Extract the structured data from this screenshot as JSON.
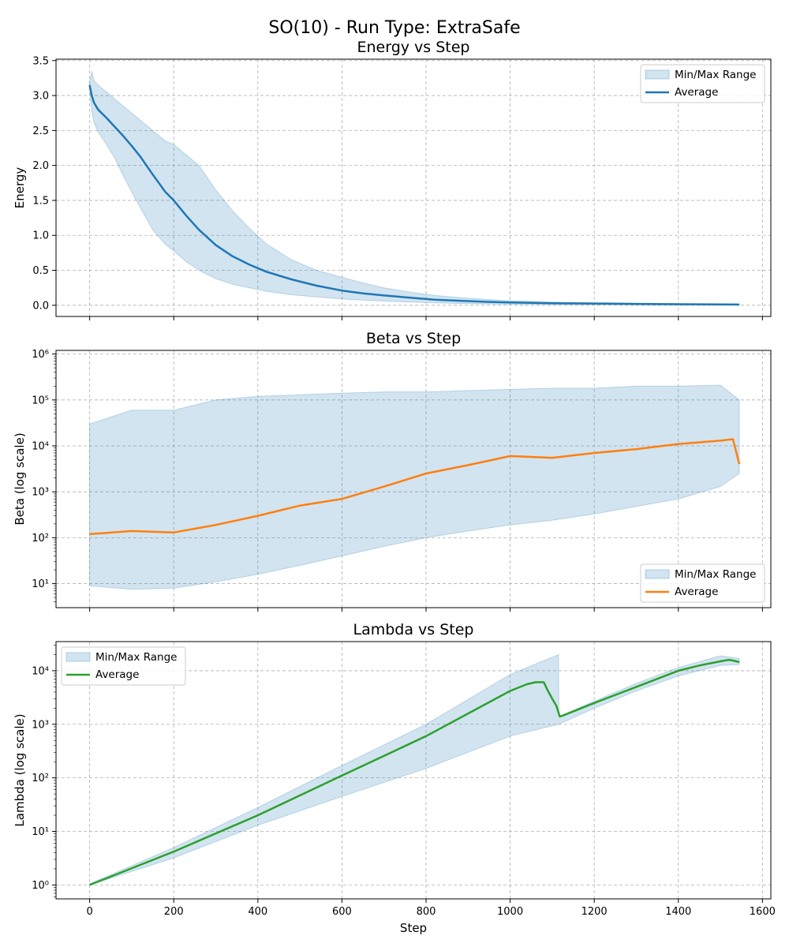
{
  "figure": {
    "title": "SO(10) - Run Type: ExtraSafe"
  },
  "colors": {
    "energy": "#1f77b4",
    "beta": "#ff7f0e",
    "lambda": "#2ca02c",
    "band": "#1f77b4"
  },
  "chart_data": [
    {
      "type": "line",
      "id": "energy",
      "title": "Energy vs Step",
      "xlabel": "",
      "ylabel": "Energy",
      "yscale": "linear",
      "xlim": [
        -80,
        1620
      ],
      "ylim": [
        -0.16,
        3.52
      ],
      "xticks": [
        0,
        200,
        400,
        600,
        800,
        1000,
        1200,
        1400,
        1600
      ],
      "yticks": [
        0.0,
        0.5,
        1.0,
        1.5,
        2.0,
        2.5,
        3.0,
        3.5
      ],
      "ytick_labels": [
        "0.0",
        "0.5",
        "1.0",
        "1.5",
        "2.0",
        "2.5",
        "3.0",
        "3.5"
      ],
      "legend": {
        "location": "upper right",
        "entries": [
          "Min/Max Range",
          "Average"
        ]
      },
      "grid": true,
      "series": [
        {
          "name": "Average",
          "x": [
            0,
            5,
            10,
            20,
            40,
            60,
            80,
            100,
            120,
            150,
            180,
            200,
            230,
            260,
            300,
            340,
            380,
            420,
            480,
            540,
            600,
            650,
            700,
            760,
            820,
            880,
            940,
            1000,
            1100,
            1200,
            1300,
            1400,
            1500,
            1545
          ],
          "y": [
            3.15,
            3.0,
            2.9,
            2.8,
            2.68,
            2.55,
            2.42,
            2.28,
            2.13,
            1.87,
            1.62,
            1.5,
            1.28,
            1.08,
            0.86,
            0.7,
            0.58,
            0.48,
            0.37,
            0.28,
            0.21,
            0.17,
            0.14,
            0.11,
            0.08,
            0.065,
            0.05,
            0.04,
            0.03,
            0.025,
            0.02,
            0.015,
            0.012,
            0.01
          ]
        },
        {
          "name": "Min/Max Range",
          "x": [
            0,
            5,
            10,
            20,
            40,
            60,
            80,
            100,
            120,
            150,
            180,
            200,
            230,
            260,
            300,
            340,
            380,
            420,
            480,
            540,
            600,
            650,
            700,
            760,
            820,
            880,
            940,
            1000,
            1100,
            1200,
            1300,
            1400,
            1500,
            1545
          ],
          "lower": [
            3.1,
            2.78,
            2.62,
            2.48,
            2.3,
            2.1,
            1.85,
            1.62,
            1.4,
            1.08,
            0.87,
            0.78,
            0.62,
            0.5,
            0.38,
            0.3,
            0.25,
            0.2,
            0.15,
            0.12,
            0.09,
            0.075,
            0.06,
            0.045,
            0.035,
            0.025,
            0.02,
            0.015,
            0.01,
            0.008,
            0.006,
            0.005,
            0.004,
            0.003
          ],
          "upper": [
            3.2,
            3.35,
            3.22,
            3.15,
            3.05,
            2.95,
            2.85,
            2.75,
            2.65,
            2.5,
            2.35,
            2.3,
            2.15,
            2.0,
            1.65,
            1.35,
            1.1,
            0.88,
            0.65,
            0.5,
            0.4,
            0.32,
            0.25,
            0.19,
            0.14,
            0.11,
            0.085,
            0.065,
            0.045,
            0.035,
            0.028,
            0.022,
            0.018,
            0.015
          ]
        }
      ]
    },
    {
      "type": "line",
      "id": "beta",
      "title": "Beta vs Step",
      "xlabel": "",
      "ylabel": "Beta (log scale)",
      "yscale": "log",
      "xlim": [
        -80,
        1620
      ],
      "ylim": [
        3,
        1200000
      ],
      "xticks": [
        0,
        200,
        400,
        600,
        800,
        1000,
        1200,
        1400,
        1600
      ],
      "yticks": [
        10,
        100,
        1000,
        10000,
        100000,
        1000000
      ],
      "ytick_labels": [
        "10¹",
        "10²",
        "10³",
        "10⁴",
        "10⁵",
        "10⁶"
      ],
      "legend": {
        "location": "lower right",
        "entries": [
          "Min/Max Range",
          "Average"
        ]
      },
      "grid": true,
      "series": [
        {
          "name": "Average",
          "x": [
            0,
            100,
            200,
            300,
            400,
            500,
            600,
            700,
            800,
            900,
            1000,
            1100,
            1200,
            1300,
            1400,
            1500,
            1530,
            1545
          ],
          "y": [
            120,
            140,
            130,
            190,
            300,
            500,
            700,
            1300,
            2500,
            3800,
            6000,
            5500,
            7000,
            8500,
            11000,
            13000,
            14000,
            4000
          ]
        },
        {
          "name": "Min/Max Range",
          "x": [
            0,
            100,
            200,
            300,
            400,
            500,
            600,
            700,
            800,
            900,
            1000,
            1100,
            1200,
            1300,
            1400,
            1500,
            1545
          ],
          "lower": [
            9,
            7.5,
            8,
            11,
            16,
            25,
            40,
            65,
            100,
            140,
            190,
            240,
            330,
            480,
            700,
            1300,
            2500
          ],
          "upper": [
            30000,
            60000,
            60000,
            100000,
            120000,
            130000,
            140000,
            150000,
            150000,
            160000,
            170000,
            180000,
            180000,
            200000,
            200000,
            210000,
            100000
          ]
        }
      ]
    },
    {
      "type": "line",
      "id": "lambda",
      "title": "Lambda vs Step",
      "xlabel": "Step",
      "ylabel": "Lambda (log scale)",
      "yscale": "log",
      "xlim": [
        -80,
        1620
      ],
      "ylim": [
        0.55,
        35000
      ],
      "xticks": [
        0,
        200,
        400,
        600,
        800,
        1000,
        1200,
        1400,
        1600
      ],
      "xtick_labels": [
        "0",
        "200",
        "400",
        "600",
        "800",
        "1000",
        "1200",
        "1400",
        "1600"
      ],
      "yticks": [
        1,
        10,
        100,
        1000,
        10000
      ],
      "ytick_labels": [
        "10⁰",
        "10¹",
        "10²",
        "10³",
        "10⁴"
      ],
      "legend": {
        "location": "upper left",
        "entries": [
          "Min/Max Range",
          "Average"
        ]
      },
      "grid": true,
      "series": [
        {
          "name": "Average",
          "x": [
            0,
            200,
            400,
            600,
            800,
            1000,
            1040,
            1060,
            1080,
            1090,
            1100,
            1110,
            1118,
            1125,
            1200,
            1300,
            1400,
            1450,
            1500,
            1520,
            1530,
            1545
          ],
          "y": [
            1.0,
            4.2,
            20,
            110,
            600,
            4200,
            5600,
            6100,
            6100,
            4200,
            3000,
            2200,
            1400,
            1450,
            2500,
            5000,
            10000,
            12500,
            15000,
            16000,
            15500,
            14500
          ]
        },
        {
          "name": "Min/Max Range",
          "x": [
            0,
            200,
            400,
            600,
            800,
            1000,
            1115,
            1116,
            1200,
            1300,
            1400,
            1500,
            1545
          ],
          "lower": [
            1.0,
            3.2,
            13,
            45,
            150,
            600,
            1000,
            1000,
            2000,
            4200,
            8000,
            12500,
            13000
          ],
          "upper": [
            1.05,
            5.0,
            28,
            170,
            1000,
            8500,
            20000,
            1400,
            2700,
            5800,
            11500,
            19000,
            17000
          ]
        }
      ]
    }
  ]
}
